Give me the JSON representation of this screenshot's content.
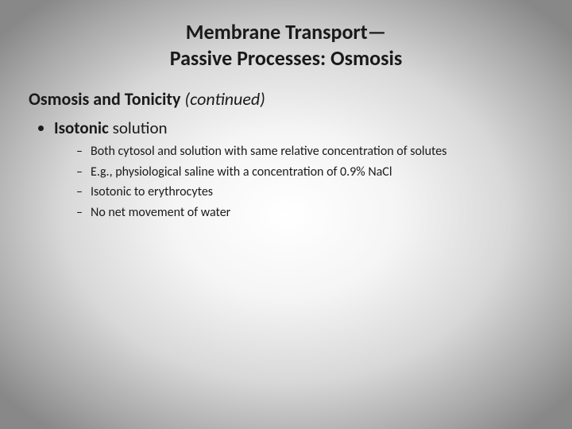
{
  "title": {
    "line1": "Membrane Transport—",
    "line2": "Passive Processes: Osmosis",
    "fontsize": 26,
    "color": "#1a1a1a"
  },
  "subtitle": {
    "bold": "Osmosis and Tonicity ",
    "italic": "(continued)",
    "fontsize": 22,
    "color": "#1a1a1a"
  },
  "bullets": {
    "level1": {
      "bold": "Isotonic",
      "rest": " solution",
      "fontsize": 21
    },
    "level2": {
      "fontsize": 16,
      "items": [
        "Both cytosol and solution with same relative concentration of solutes",
        "E.g., physiological saline with a concentration of 0.9% NaCl",
        "Isotonic to erythrocytes",
        "No net movement of water"
      ]
    }
  },
  "background": {
    "center_color": "#ffffff",
    "edge_color": "#888888"
  }
}
